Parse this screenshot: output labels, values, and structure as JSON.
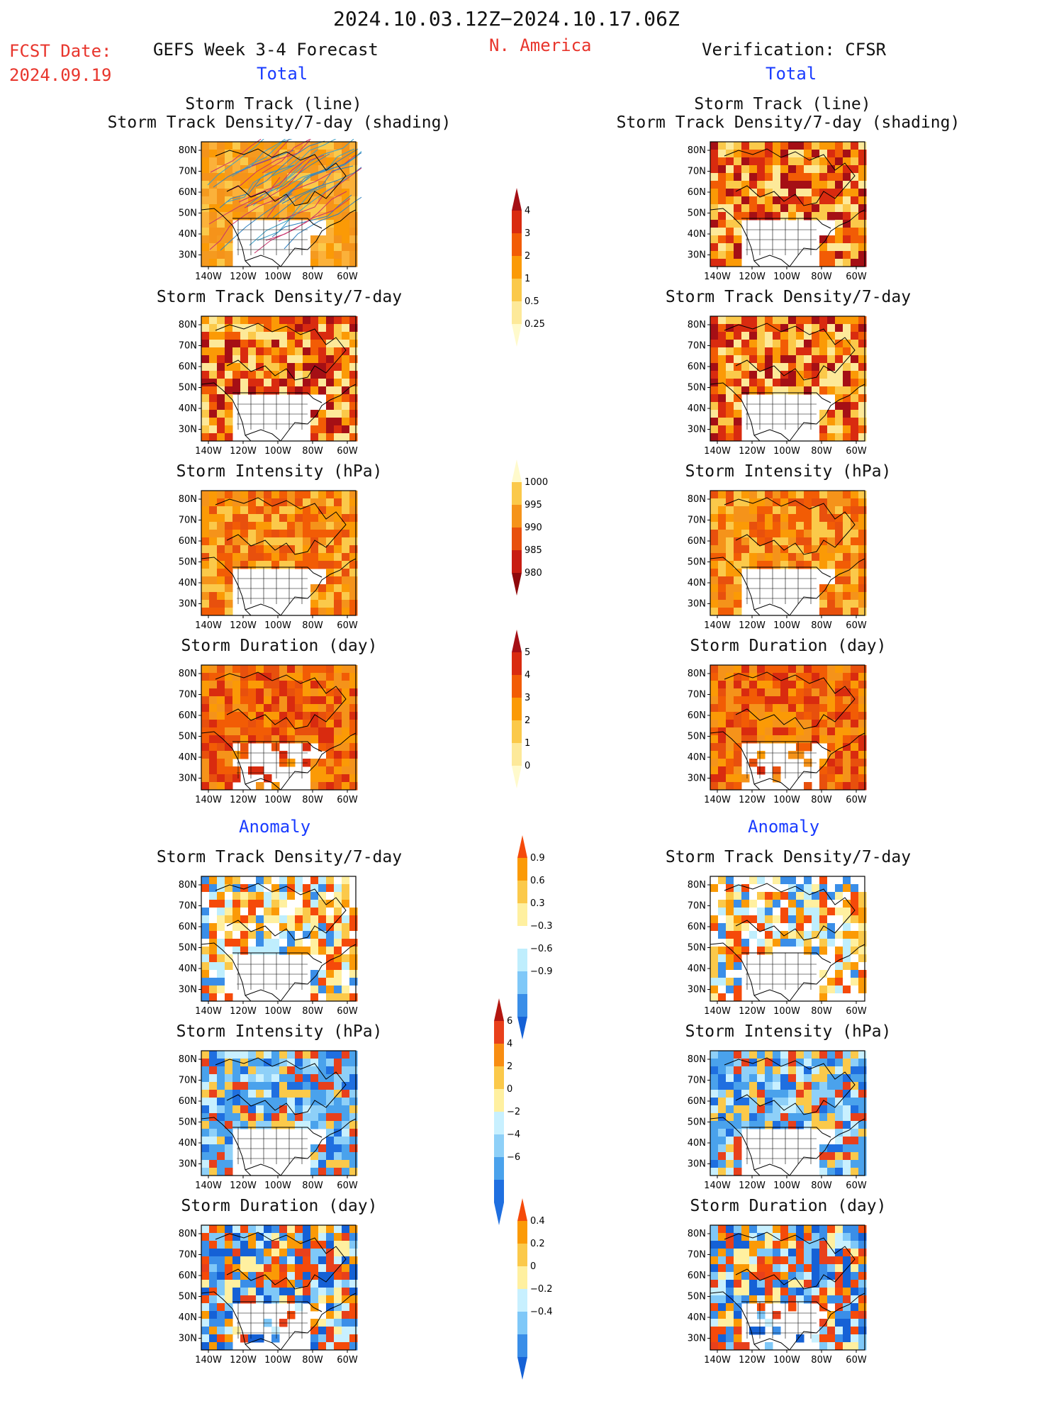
{
  "header": {
    "date_range": "2024.10.03.12Z−2024.10.17.06Z",
    "fcst_label": "FCST Date:",
    "fcst_date": "2024.09.19",
    "left_title": "GEFS Week 3-4 Forecast",
    "region": "N. America",
    "right_title": "Verification: CFSR",
    "total_left": "Total",
    "total_right": "Total",
    "anomaly_left": "Anomaly",
    "anomaly_right": "Anomaly"
  },
  "panel_titles": {
    "track_line": "Storm Track (line)",
    "track_shading": "Storm Track Density/7-day (shading)",
    "density": "Storm Track Density/7-day",
    "intensity": "Storm Intensity (hPa)",
    "duration": "Storm Duration (day)"
  },
  "axes": {
    "lat_labels": [
      "80N",
      "70N",
      "60N",
      "50N",
      "40N",
      "30N"
    ],
    "lon_labels": [
      "140W",
      "120W",
      "100W",
      "80W",
      "60W"
    ]
  },
  "colorbars": {
    "density": {
      "labels": [
        "4",
        "3",
        "2",
        "1",
        "0.5",
        "0.25"
      ],
      "colors": [
        "#a50f15",
        "#d92b0f",
        "#f25c05",
        "#fb9a06",
        "#fbc94a",
        "#fde999",
        "#fffacc"
      ]
    },
    "intensity": {
      "labels": [
        "1000",
        "995",
        "990",
        "985",
        "980"
      ],
      "colors": [
        "#fffacc",
        "#fbc94a",
        "#f5931a",
        "#e8500d",
        "#c81d12",
        "#8f0a0c"
      ]
    },
    "duration": {
      "labels": [
        "5",
        "4",
        "3",
        "2",
        "1",
        "0"
      ],
      "colors": [
        "#a50f15",
        "#d92b0f",
        "#f25c05",
        "#fb9a06",
        "#fbc94a",
        "#fde999",
        "#fffacc"
      ]
    },
    "anom_density": {
      "labels": [
        "0.9",
        "0.6",
        "0.3",
        "−0.3",
        "−0.6",
        "−0.9"
      ],
      "colors": [
        "#f54a0a",
        "#fb9a06",
        "#fbc94a",
        "#fff0a0",
        "#ffffff",
        "#bfeefd",
        "#7fc8f8",
        "#3a8ee8",
        "#1561d6"
      ]
    },
    "anom_intensity": {
      "labels": [
        "6",
        "4",
        "2",
        "0",
        "−2",
        "−4",
        "−6"
      ],
      "colors": [
        "#b3160f",
        "#e8401b",
        "#f88d11",
        "#fbc94a",
        "#fff0a0",
        "#c8f0ff",
        "#8ed0f8",
        "#4aa2ec",
        "#1f6fe0",
        "#1f6fe0"
      ]
    },
    "anom_duration": {
      "labels": [
        "0.4",
        "0.2",
        "0",
        "−0.2",
        "−0.4"
      ],
      "colors": [
        "#f54a0a",
        "#fb9a06",
        "#fbc94a",
        "#fff0a0",
        "#c8f0ff",
        "#7fc8f8",
        "#3a8ee8",
        "#1561d6"
      ]
    }
  },
  "colors": {
    "label_red": "#e8352c",
    "label_blue": "#1a3cff"
  }
}
